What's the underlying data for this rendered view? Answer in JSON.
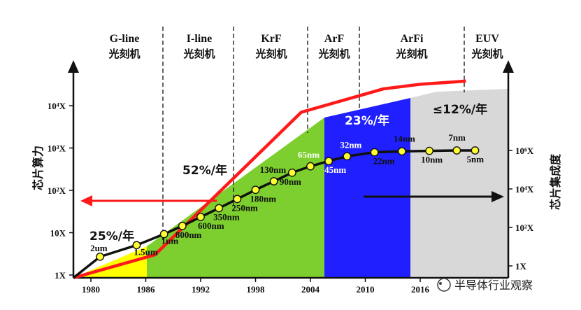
{
  "chart_data": {
    "type": "line",
    "title": "",
    "y_left_label": "芯片算力",
    "y_right_label": "芯片集成度",
    "x_ticks": [
      "1980",
      "1986",
      "1992",
      "1998",
      "2004",
      "2010",
      "2016"
    ],
    "y_left_ticks": [
      "1X",
      "10X",
      "10²X",
      "10³X",
      "10⁴X"
    ],
    "y_right_ticks": [
      "1X",
      "10²X",
      "10⁴X",
      "10⁶X"
    ],
    "eras": [
      {
        "name": "G-line",
        "sub": "光刻机"
      },
      {
        "name": "I-line",
        "sub": "光刻机"
      },
      {
        "name": "KrF",
        "sub": "光刻机"
      },
      {
        "name": "ArF",
        "sub": "光刻机"
      },
      {
        "name": "ArFi",
        "sub": "光刻机"
      },
      {
        "name": "EUV",
        "sub": "光刻机"
      }
    ],
    "growth_rates": [
      "25%/年",
      "52%/年",
      "23%/年",
      "≤12%/年"
    ],
    "computing_power_series": {
      "axis": "left",
      "points": [
        {
          "year": 1980,
          "value": 1
        },
        {
          "year": 1987,
          "value": 3
        },
        {
          "year": 2003,
          "value": 7000
        },
        {
          "year": 2012,
          "value": 25000
        },
        {
          "year": 2016,
          "value": 32000
        },
        {
          "year": 2021,
          "value": 38000
        }
      ]
    },
    "integration_series": {
      "axis": "right",
      "points": [
        {
          "year": 1981,
          "node": "2um",
          "value": 3
        },
        {
          "year": 1985,
          "node": "1.5um",
          "value": 12
        },
        {
          "year": 1988,
          "node": "1um",
          "value": 45
        },
        {
          "year": 1990,
          "node": "800nm",
          "value": 120
        },
        {
          "year": 1992,
          "node": "600nm",
          "value": 350
        },
        {
          "year": 1994,
          "node": "350nm",
          "value": 1000
        },
        {
          "year": 1996,
          "node": "250nm",
          "value": 3000
        },
        {
          "year": 1998,
          "node": "180nm",
          "value": 9000
        },
        {
          "year": 2000,
          "node": "130nm",
          "value": 25000
        },
        {
          "year": 2002,
          "node": "90nm",
          "value": 70000
        },
        {
          "year": 2004,
          "node": "65nm",
          "value": 150000
        },
        {
          "year": 2006,
          "node": "45nm",
          "value": 280000
        },
        {
          "year": 2008,
          "node": "32nm",
          "value": 500000
        },
        {
          "year": 2011,
          "node": "22nm",
          "value": 800000
        },
        {
          "year": 2014,
          "node": "14nm",
          "value": 900000
        },
        {
          "year": 2017,
          "node": "10nm",
          "value": 950000
        },
        {
          "year": 2020,
          "node": "7nm",
          "value": 1000000
        },
        {
          "year": 2022,
          "node": "5nm",
          "value": 1000000
        }
      ]
    }
  },
  "watermark": "半导体行业观察",
  "colors": {
    "yellow_era": "#ffff00",
    "green_era": "#7ccf2e",
    "blue_era": "#1f1fff",
    "gray_era": "#d8d8d8",
    "power_line": "#ff1a1a",
    "node_dot": "#ffff33"
  }
}
